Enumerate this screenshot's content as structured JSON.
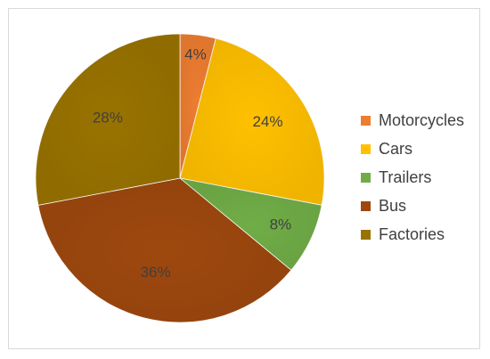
{
  "chart_data": {
    "type": "pie",
    "title": "",
    "categories": [
      "Motorcycles",
      "Cars",
      "Trailers",
      "Bus",
      "Factories"
    ],
    "values": [
      4,
      24,
      8,
      36,
      28
    ],
    "value_labels": [
      "4%",
      "24%",
      "8%",
      "36%",
      "28%"
    ],
    "colors": [
      "#ED7D31",
      "#FFC000",
      "#70AD47",
      "#9E480E",
      "#997300"
    ],
    "start_angle": "12 o'clock",
    "direction": "clockwise",
    "legend_position": "right"
  }
}
